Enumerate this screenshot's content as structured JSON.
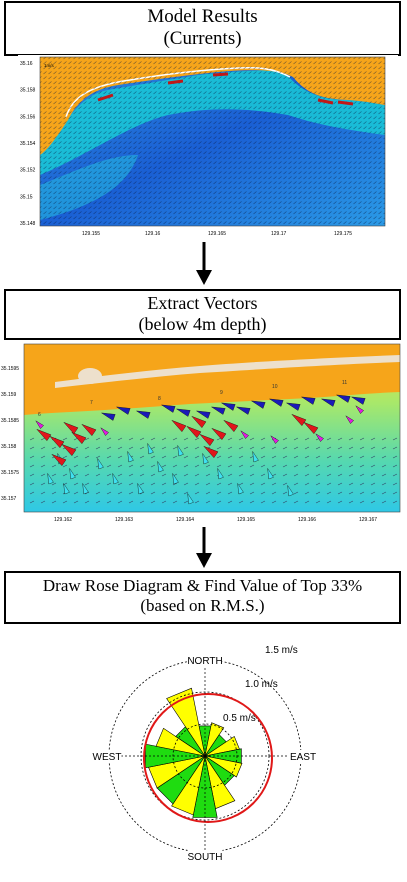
{
  "step1": {
    "line1": "Model Results",
    "line2": "(Currents)"
  },
  "step2": {
    "line1": "Extract Vectors",
    "line2": "(below 4m depth)"
  },
  "step3": {
    "line1": "Draw Rose Diagram & Find Value of Top 33%",
    "line2": "(based on R.M.S.)"
  },
  "map1": {
    "y_ticks": [
      "35.16",
      "35.158",
      "35.156",
      "35.154",
      "35.152",
      "35.15",
      "35.148"
    ],
    "x_ticks": [
      "129.155",
      "129.16",
      "129.165",
      "129.17",
      "129.175"
    ],
    "scale_label": "1m/s",
    "colors": {
      "land": "#f6a51a",
      "water_deep": "#1f63d6",
      "water_shallow": "#17c6d8"
    }
  },
  "map2": {
    "y_ticks": [
      "35.1595",
      "35.159",
      "35.1585",
      "35.158",
      "35.1575",
      "35.157"
    ],
    "x_ticks": [
      "129.162",
      "129.163",
      "129.164",
      "129.165",
      "129.166",
      "129.167"
    ],
    "stations": [
      "6",
      "7",
      "8",
      "9",
      "10",
      "11"
    ],
    "colors": {
      "land": "#f6a51a",
      "beach": "#ede0cc",
      "blue_vector": "#1a1ab8",
      "red_vector": "#e0161b",
      "magenta_vector": "#e21ae2",
      "cyan_vector": "#3fe0f0"
    }
  },
  "rose": {
    "north": "NORTH",
    "south": "SOUTH",
    "east": "EAST",
    "west": "WEST",
    "ring_labels": [
      "1.5 m/s",
      "1.0 m/s",
      "0.5 m/s"
    ],
    "ring_values": [
      1.5,
      1.0,
      0.5
    ],
    "top33_rms": 1.0,
    "sector_colors": [
      "#1fdc10",
      "#ffff00"
    ],
    "sectors": [
      {
        "dir": 0,
        "value": 0.48
      },
      {
        "dir": 22.5,
        "value": 0.53
      },
      {
        "dir": 45,
        "value": 0.4
      },
      {
        "dir": 67.5,
        "value": 0.55
      },
      {
        "dir": 90,
        "value": 0.58
      },
      {
        "dir": 112.5,
        "value": 0.59
      },
      {
        "dir": 135,
        "value": 0.55
      },
      {
        "dir": 157.5,
        "value": 0.84
      },
      {
        "dir": 180,
        "value": 0.98
      },
      {
        "dir": 202.5,
        "value": 0.94
      },
      {
        "dir": 225,
        "value": 0.9
      },
      {
        "dir": 247.5,
        "value": 0.9
      },
      {
        "dir": 270,
        "value": 0.95
      },
      {
        "dir": 292.5,
        "value": 0.78
      },
      {
        "dir": 315,
        "value": 0.55
      },
      {
        "dir": 337.5,
        "value": 1.08
      }
    ]
  }
}
